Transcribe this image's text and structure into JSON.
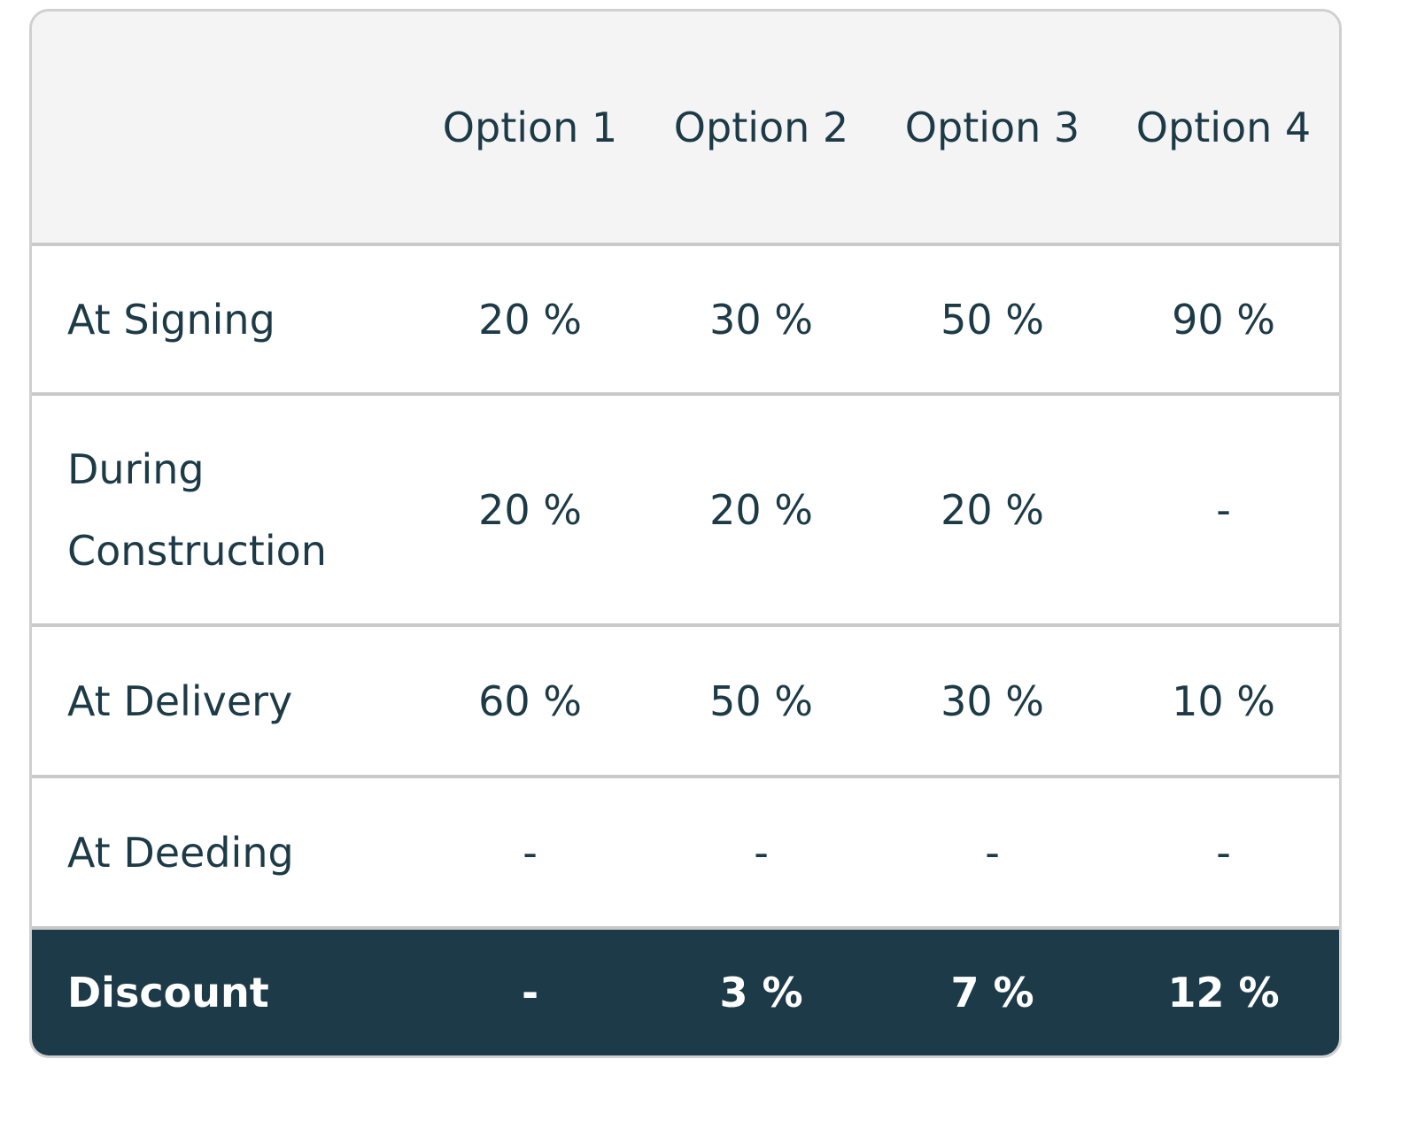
{
  "table": {
    "columns": [
      "Option 1",
      "Option 2",
      "Option 3",
      "Option 4"
    ],
    "rows": [
      {
        "label": "At Signing",
        "cells": [
          "20 %",
          "30 %",
          "50 %",
          "90 %"
        ]
      },
      {
        "label": "During Construction",
        "cells": [
          "20 %",
          "20 %",
          "20 %",
          "-"
        ]
      },
      {
        "label": "At Delivery",
        "cells": [
          "60 %",
          "50 %",
          "30 %",
          "10 %"
        ]
      },
      {
        "label": "At Deeding",
        "cells": [
          "-",
          "-",
          "-",
          "-"
        ]
      },
      {
        "label": "Discount",
        "cells": [
          "-",
          "3 %",
          "7 %",
          "12 %"
        ]
      }
    ]
  }
}
